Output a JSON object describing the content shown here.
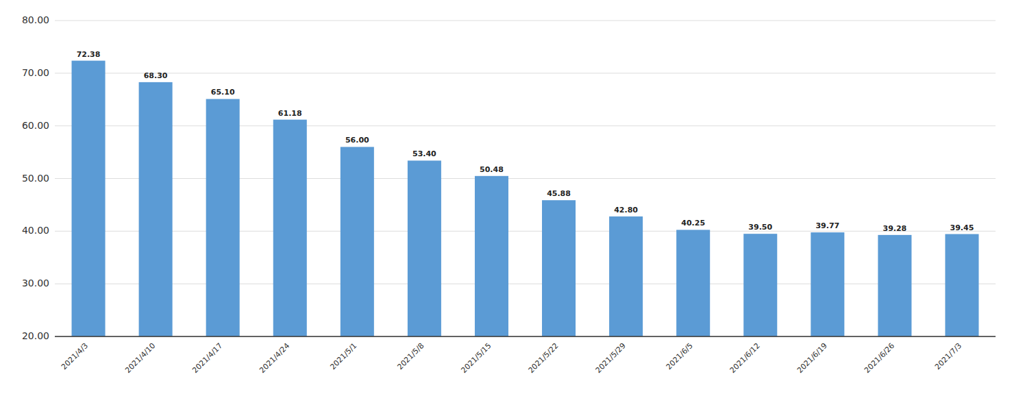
{
  "chart_data": {
    "type": "bar",
    "categories": [
      "2021/4/3",
      "2021/4/10",
      "2021/4/17",
      "2021/4/24",
      "2021/5/1",
      "2021/5/8",
      "2021/5/15",
      "2021/5/22",
      "2021/5/29",
      "2021/6/5",
      "2021/6/12",
      "2021/6/19",
      "2021/6/26",
      "2021/7/3"
    ],
    "values": [
      72.38,
      68.3,
      65.1,
      61.18,
      56.0,
      53.4,
      50.48,
      45.88,
      42.8,
      40.25,
      39.5,
      39.77,
      39.28,
      39.45
    ],
    "value_labels": [
      "72.38",
      "68.30",
      "65.10",
      "61.18",
      "56.00",
      "53.40",
      "50.48",
      "45.88",
      "42.80",
      "40.25",
      "39.50",
      "39.77",
      "39.28",
      "39.45"
    ],
    "data_labels": true,
    "color": "#5b9bd5",
    "ylim": [
      20.0,
      80.0
    ],
    "yticks": [
      {
        "value": 20.0,
        "label": "20.00"
      },
      {
        "value": 30.0,
        "label": "30.00"
      },
      {
        "value": 40.0,
        "label": "40.00"
      },
      {
        "value": 50.0,
        "label": "50.00"
      },
      {
        "value": 60.0,
        "label": "60.00"
      },
      {
        "value": 70.0,
        "label": "70.00"
      },
      {
        "value": 80.0,
        "label": "80.00"
      }
    ],
    "grid": true
  }
}
